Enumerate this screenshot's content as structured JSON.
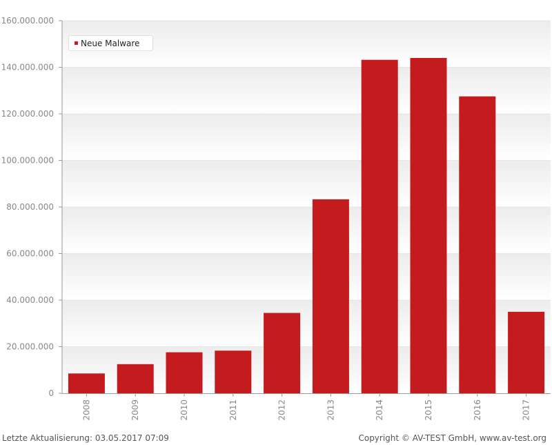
{
  "chart_data": {
    "type": "bar",
    "title": "",
    "xlabel": "",
    "ylabel": "",
    "categories": [
      "2008",
      "2009",
      "2010",
      "2011",
      "2012",
      "2013",
      "2014",
      "2015",
      "2016",
      "2017"
    ],
    "series": [
      {
        "name": "Neue Malware",
        "color": "#c41b1e",
        "values": [
          8500000,
          12500000,
          17600000,
          18300000,
          34500000,
          83300000,
          143200000,
          144000000,
          127500000,
          35000000
        ]
      }
    ],
    "ylim": [
      0,
      160000000
    ],
    "yticks": [
      0,
      20000000,
      40000000,
      60000000,
      80000000,
      100000000,
      120000000,
      140000000,
      160000000
    ],
    "ytick_labels": [
      "0",
      "20.000.000",
      "40.000.000",
      "60.000.000",
      "80.000.000",
      "100.000.000",
      "120.000.000",
      "140.000.000",
      "160.000.000"
    ],
    "legend": {
      "position": "top-left",
      "entries": [
        "Neue Malware"
      ]
    },
    "grid": true
  },
  "footer": {
    "last_update": "Letzte Aktualisierung: 03.05.2017 07:09",
    "copyright": "Copyright © AV-TEST GmbH, www.av-test.org"
  }
}
